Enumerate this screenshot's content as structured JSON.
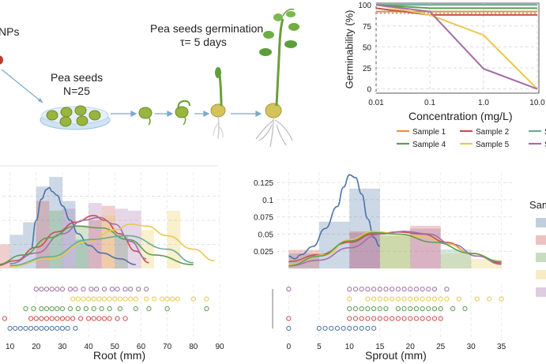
{
  "colors": {
    "sample1": "#e8923a",
    "sample2": "#c9504d",
    "sample3": "#6aab9a",
    "sample4": "#5e9e4e",
    "sample5": "#e9c84e",
    "sample6": "#a36ea8",
    "blue": "#4d73a6",
    "dish": "#bcd8ef",
    "seed": "#9ab53f",
    "stem": "#6a9e3c"
  },
  "schematic": {
    "nps_label": "NPs",
    "seeds_label": "Pea seeds",
    "seeds_n": "N=25",
    "germ_title": "Pea seeds germination",
    "germ_tau": "τ= 5 days"
  },
  "chart_data": [
    {
      "type": "line",
      "id": "germinability",
      "title": "",
      "xlabel": "Concentration (mg/L)",
      "ylabel": "Germinability (%)",
      "xscale": "log",
      "x": [
        0.01,
        0.1,
        1.0,
        10.0
      ],
      "x_tick_labels": [
        "0.01",
        "0.1",
        "1.0",
        "10.0"
      ],
      "y_ticks": [
        "0",
        "25",
        "50",
        "75",
        "100"
      ],
      "ylim": [
        -5,
        102
      ],
      "reference_line": 90,
      "series": [
        {
          "name": "Sample 1",
          "color_key": "sample1",
          "values": [
            92,
            92,
            92,
            92
          ]
        },
        {
          "name": "Sample 2",
          "color_key": "sample2",
          "values": [
            96,
            88,
            88,
            88
          ]
        },
        {
          "name": "Sample 3",
          "color_key": "sample3",
          "values": [
            100,
            100,
            100,
            100
          ]
        },
        {
          "name": "Sample 4",
          "color_key": "sample4",
          "values": [
            100,
            96,
            96,
            96
          ]
        },
        {
          "name": "Sample 5",
          "color_key": "sample5",
          "values": [
            100,
            88,
            64,
            0
          ]
        },
        {
          "name": "Sample 6",
          "color_key": "sample6",
          "values": [
            100,
            92,
            24,
            0
          ]
        }
      ],
      "legend": [
        "Sample 1",
        "Sample 2",
        "Sam",
        "Sample 4",
        "Sample 5",
        "Sam"
      ]
    },
    {
      "type": "histogram",
      "id": "root",
      "xlabel": "Root (mm)",
      "x_ticks": [
        "10",
        "20",
        "30",
        "40",
        "50",
        "60",
        "70",
        "80",
        "90"
      ],
      "xlim": [
        5,
        90
      ],
      "bars": [
        {
          "color_key": "blue",
          "left": 10,
          "right": 15,
          "height": 0.35
        },
        {
          "color_key": "blue",
          "left": 15,
          "right": 20,
          "height": 0.48
        },
        {
          "color_key": "blue",
          "left": 20,
          "right": 25,
          "height": 0.85
        },
        {
          "color_key": "blue",
          "left": 25,
          "right": 30,
          "height": 0.95
        },
        {
          "color_key": "blue",
          "left": 30,
          "right": 35,
          "height": 0.7
        },
        {
          "color_key": "blue",
          "left": 35,
          "right": 40,
          "height": 0.3
        },
        {
          "color_key": "sample2",
          "left": 5,
          "right": 10,
          "height": 0.25
        },
        {
          "color_key": "sample2",
          "left": 20,
          "right": 25,
          "height": 0.7
        },
        {
          "color_key": "sample2",
          "left": 40,
          "right": 45,
          "height": 0.5
        },
        {
          "color_key": "sample2",
          "left": 45,
          "right": 50,
          "height": 0.65
        },
        {
          "color_key": "sample4",
          "left": 25,
          "right": 30,
          "height": 0.6
        },
        {
          "color_key": "sample4",
          "left": 35,
          "right": 40,
          "height": 0.45
        },
        {
          "color_key": "sample4",
          "left": 50,
          "right": 55,
          "height": 0.35
        },
        {
          "color_key": "sample5",
          "left": 45,
          "right": 50,
          "height": 0.55
        },
        {
          "color_key": "sample5",
          "left": 60,
          "right": 65,
          "height": 0.4
        },
        {
          "color_key": "sample5",
          "left": 70,
          "right": 75,
          "height": 0.6
        },
        {
          "color_key": "sample6",
          "left": 30,
          "right": 35,
          "height": 0.62
        },
        {
          "color_key": "sample6",
          "left": 40,
          "right": 45,
          "height": 0.68
        },
        {
          "color_key": "sample6",
          "left": 50,
          "right": 55,
          "height": 0.62
        },
        {
          "color_key": "sample6",
          "left": 55,
          "right": 60,
          "height": 0.6
        }
      ],
      "curves": [
        {
          "color_key": "blue",
          "x": [
            18,
            20,
            22,
            24,
            25,
            26,
            28,
            30,
            33,
            36,
            40,
            45,
            52,
            58
          ],
          "y": [
            0.2,
            0.5,
            0.72,
            0.82,
            0.84,
            0.8,
            0.76,
            0.65,
            0.5,
            0.36,
            0.24,
            0.16,
            0.1,
            0.04
          ]
        },
        {
          "color_key": "sample2",
          "x": [
            5,
            12,
            20,
            28,
            35,
            42,
            46,
            52,
            58,
            63
          ],
          "y": [
            0.03,
            0.08,
            0.22,
            0.38,
            0.48,
            0.55,
            0.5,
            0.36,
            0.18,
            0.06
          ]
        },
        {
          "color_key": "sample6",
          "x": [
            10,
            20,
            30,
            38,
            44,
            50,
            56,
            62
          ],
          "y": [
            0.05,
            0.16,
            0.36,
            0.5,
            0.53,
            0.46,
            0.28,
            0.1
          ]
        },
        {
          "color_key": "sample4",
          "x": [
            5,
            15,
            25,
            35,
            45,
            55,
            65,
            80
          ],
          "y": [
            0.04,
            0.14,
            0.32,
            0.44,
            0.42,
            0.3,
            0.14,
            0.04
          ]
        },
        {
          "color_key": "sample5",
          "x": [
            10,
            25,
            40,
            50,
            56,
            62,
            70,
            80,
            88
          ],
          "y": [
            0.02,
            0.1,
            0.28,
            0.4,
            0.46,
            0.44,
            0.34,
            0.2,
            0.08
          ]
        },
        {
          "color_key": "sample3",
          "x": [
            10,
            25,
            40,
            55,
            70,
            80
          ],
          "y": [
            0.03,
            0.12,
            0.3,
            0.34,
            0.2,
            0.06
          ]
        }
      ],
      "strip_rows": [
        {
          "color_key": "sample6",
          "values": [
            20,
            22,
            24,
            26,
            28,
            30,
            33,
            35,
            38,
            41,
            43,
            46,
            49,
            51,
            54,
            56,
            59,
            62
          ]
        },
        {
          "color_key": "sample5",
          "values": [
            34,
            36,
            38,
            40,
            42,
            44,
            46,
            48,
            50,
            52,
            54,
            56,
            58,
            62,
            65,
            68,
            70,
            72,
            74,
            80,
            85
          ]
        },
        {
          "color_key": "sample4",
          "values": [
            16,
            19,
            22,
            24,
            26,
            28,
            30,
            33,
            36,
            39,
            42,
            45,
            48,
            52,
            58,
            63,
            70,
            85
          ]
        },
        {
          "color_key": "sample2",
          "values": [
            8,
            18,
            20,
            22,
            24,
            26,
            28,
            30,
            32,
            34,
            37,
            40,
            42,
            44,
            46,
            48,
            51,
            54
          ]
        },
        {
          "color_key": "blue",
          "values": [
            10,
            12,
            14,
            16,
            18,
            20,
            22,
            24,
            26,
            28,
            30,
            32,
            35
          ]
        }
      ]
    },
    {
      "type": "histogram",
      "id": "sprout",
      "xlabel": "Sprout (mm)",
      "x_ticks": [
        "0",
        "5",
        "10",
        "15",
        "20",
        "25",
        "30",
        "35"
      ],
      "y_ticks": [
        "0.025",
        "0.05",
        "0.075",
        "0.1",
        "0.125"
      ],
      "xlim": [
        -2,
        37
      ],
      "ylim": [
        0,
        0.14
      ],
      "legend_title": "Sam",
      "bars": [
        {
          "color_key": "blue",
          "left": 0,
          "right": 5,
          "height": 0.022
        },
        {
          "color_key": "blue",
          "left": 5,
          "right": 10,
          "height": 0.068
        },
        {
          "color_key": "blue",
          "left": 10,
          "right": 15,
          "height": 0.116
        },
        {
          "color_key": "sample2",
          "left": 0,
          "right": 5,
          "height": 0.027
        },
        {
          "color_key": "sample2",
          "left": 10,
          "right": 15,
          "height": 0.054
        },
        {
          "color_key": "sample2",
          "left": 20,
          "right": 25,
          "height": 0.062
        },
        {
          "color_key": "sample5",
          "left": 15,
          "right": 20,
          "height": 0.05
        },
        {
          "color_key": "sample5",
          "left": 25,
          "right": 30,
          "height": 0.022
        },
        {
          "color_key": "sample5",
          "left": 30,
          "right": 35,
          "height": 0.014
        },
        {
          "color_key": "sample6",
          "left": 10,
          "right": 15,
          "height": 0.052
        },
        {
          "color_key": "sample6",
          "left": 20,
          "right": 25,
          "height": 0.058
        },
        {
          "color_key": "sample4",
          "left": 15,
          "right": 20,
          "height": 0.048
        },
        {
          "color_key": "sample3",
          "left": 25,
          "right": 30,
          "height": 0.028
        }
      ],
      "curves": [
        {
          "color_key": "blue",
          "x": [
            0,
            1,
            2,
            4,
            6,
            8,
            9,
            10,
            11,
            12,
            13,
            14,
            15
          ],
          "y": [
            0.018,
            0.014,
            0.02,
            0.032,
            0.058,
            0.09,
            0.118,
            0.136,
            0.132,
            0.108,
            0.072,
            0.045,
            0.032
          ]
        },
        {
          "color_key": "sample2",
          "x": [
            0,
            5,
            10,
            14,
            18,
            22,
            26,
            30,
            35
          ],
          "y": [
            0.01,
            0.02,
            0.038,
            0.05,
            0.053,
            0.05,
            0.038,
            0.022,
            0.008
          ]
        },
        {
          "color_key": "sample6",
          "x": [
            0,
            5,
            10,
            15,
            19,
            23,
            27,
            31,
            35
          ],
          "y": [
            0.004,
            0.012,
            0.03,
            0.05,
            0.054,
            0.05,
            0.035,
            0.018,
            0.006
          ]
        },
        {
          "color_key": "sample5",
          "x": [
            0,
            6,
            10,
            14,
            18,
            22,
            26,
            30,
            35
          ],
          "y": [
            0.005,
            0.02,
            0.042,
            0.054,
            0.05,
            0.046,
            0.036,
            0.022,
            0.01
          ]
        },
        {
          "color_key": "sample4",
          "x": [
            0,
            5,
            10,
            14,
            18,
            24,
            30,
            35
          ],
          "y": [
            0.004,
            0.018,
            0.04,
            0.052,
            0.05,
            0.038,
            0.022,
            0.01
          ]
        }
      ],
      "strip_rows": [
        {
          "color_key": "sample6",
          "values": [
            0,
            10,
            11,
            12,
            13,
            14,
            15,
            16,
            17,
            18,
            19,
            20,
            21,
            22,
            23,
            24,
            26
          ]
        },
        {
          "color_key": "sample5",
          "values": [
            10,
            13,
            14,
            15,
            16,
            17,
            18,
            19,
            20,
            21,
            22,
            23,
            24,
            25,
            26,
            28,
            31,
            33,
            35
          ]
        },
        {
          "color_key": "sample4",
          "values": [
            10,
            11,
            12,
            13,
            14,
            15,
            16,
            18,
            19,
            20,
            21,
            22,
            23,
            24,
            25,
            27,
            29
          ]
        },
        {
          "color_key": "sample2",
          "values": [
            0,
            10,
            11,
            12,
            13,
            14,
            15,
            16,
            17,
            18,
            19,
            20,
            21,
            22,
            23,
            24,
            25
          ]
        },
        {
          "color_key": "blue",
          "values": [
            0,
            5,
            6,
            7,
            8,
            9,
            10,
            11,
            12,
            13,
            14
          ]
        }
      ]
    }
  ]
}
